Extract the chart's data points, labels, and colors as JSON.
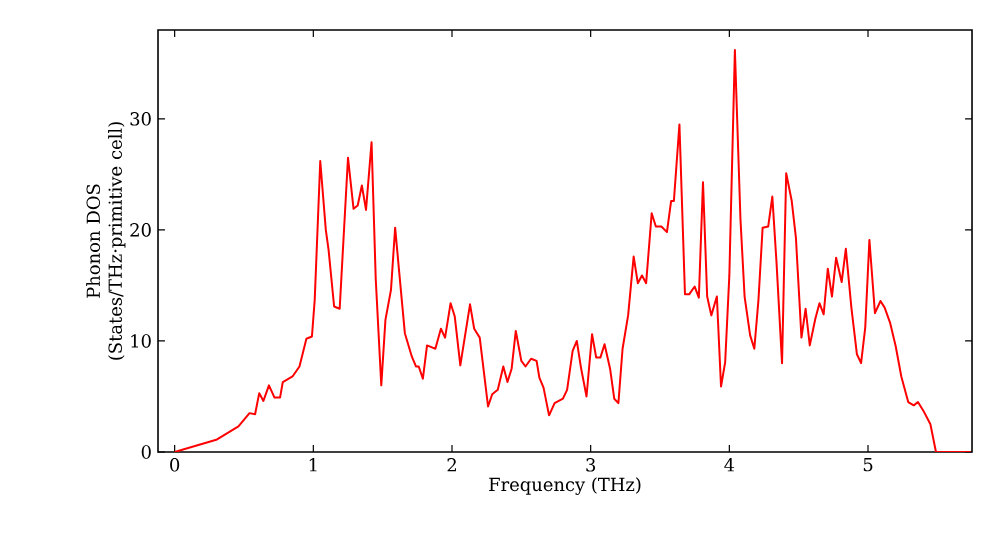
{
  "chart_data": {
    "type": "line",
    "xlabel": "Frequency (THz)",
    "ylabel": "Phonon DOS (States/THz·primitive cell)",
    "xlim": [
      -0.12,
      5.75
    ],
    "ylim": [
      0,
      38
    ],
    "xticks": [
      0,
      1,
      2,
      3,
      4,
      5
    ],
    "yticks": [
      0,
      10,
      20,
      30
    ],
    "marker": "none",
    "line_style": "solid",
    "series": [
      {
        "color": "#ff0000",
        "x": [
          0,
          0.3,
          0.46,
          0.54,
          0.58,
          0.61,
          0.64,
          0.68,
          0.72,
          0.76,
          0.78,
          0.85,
          0.9,
          0.95,
          0.99,
          1.01,
          1.05,
          1.09,
          1.11,
          1.15,
          1.19,
          1.25,
          1.29,
          1.32,
          1.35,
          1.38,
          1.42,
          1.45,
          1.49,
          1.52,
          1.56,
          1.59,
          1.62,
          1.66,
          1.71,
          1.74,
          1.76,
          1.79,
          1.82,
          1.86,
          1.88,
          1.92,
          1.95,
          1.99,
          2.02,
          2.06,
          2.13,
          2.16,
          2.2,
          2.26,
          2.29,
          2.33,
          2.37,
          2.4,
          2.43,
          2.46,
          2.5,
          2.53,
          2.57,
          2.61,
          2.63,
          2.66,
          2.7,
          2.74,
          2.8,
          2.83,
          2.87,
          2.9,
          2.93,
          2.97,
          3.01,
          3.04,
          3.07,
          3.1,
          3.14,
          3.17,
          3.2,
          3.23,
          3.27,
          3.31,
          3.34,
          3.37,
          3.4,
          3.44,
          3.47,
          3.51,
          3.55,
          3.58,
          3.6,
          3.64,
          3.68,
          3.71,
          3.75,
          3.78,
          3.81,
          3.84,
          3.87,
          3.91,
          3.94,
          3.97,
          4.0,
          4.04,
          4.08,
          4.11,
          4.15,
          4.18,
          4.21,
          4.24,
          4.28,
          4.31,
          4.34,
          4.38,
          4.41,
          4.45,
          4.48,
          4.52,
          4.55,
          4.58,
          4.62,
          4.65,
          4.68,
          4.71,
          4.74,
          4.77,
          4.81,
          4.84,
          4.88,
          4.92,
          4.95,
          4.98,
          5.01,
          5.05,
          5.09,
          5.12,
          5.16,
          5.2,
          5.24,
          5.29,
          5.33,
          5.36,
          5.4,
          5.45,
          5.49,
          5.74
        ],
        "values": [
          0,
          1.1,
          2.3,
          3.5,
          3.4,
          5.3,
          4.6,
          6.0,
          4.9,
          4.9,
          6.3,
          6.8,
          7.7,
          10.2,
          10.4,
          13.7,
          26.2,
          20.0,
          18.2,
          13.1,
          12.9,
          26.5,
          21.9,
          22.2,
          24.0,
          21.8,
          27.9,
          15.6,
          6.0,
          11.9,
          14.6,
          20.2,
          16.1,
          10.7,
          8.6,
          7.7,
          7.7,
          6.6,
          9.6,
          9.4,
          9.3,
          11.1,
          10.3,
          13.4,
          12.2,
          7.8,
          13.3,
          11.1,
          10.3,
          4.1,
          5.2,
          5.6,
          7.7,
          6.3,
          7.5,
          10.9,
          8.2,
          7.7,
          8.4,
          8.2,
          6.7,
          5.8,
          3.3,
          4.4,
          4.8,
          5.6,
          9.1,
          10.0,
          7.6,
          5.0,
          10.6,
          8.5,
          8.5,
          9.7,
          7.5,
          4.8,
          4.4,
          9.3,
          12.3,
          17.6,
          15.2,
          15.9,
          15.2,
          21.5,
          20.3,
          20.3,
          19.8,
          22.6,
          22.6,
          29.5,
          14.2,
          14.2,
          14.9,
          13.9,
          24.3,
          14.0,
          12.3,
          14.0,
          5.9,
          8.1,
          15.9,
          36.2,
          21.0,
          14.0,
          10.5,
          9.3,
          13.7,
          20.2,
          20.3,
          23.0,
          17.1,
          8.0,
          25.1,
          22.6,
          19.3,
          10.3,
          12.9,
          9.6,
          12.0,
          13.4,
          12.4,
          16.5,
          14.0,
          17.5,
          15.3,
          18.3,
          13.0,
          8.8,
          8.0,
          11.2,
          19.1,
          12.5,
          13.6,
          13.0,
          11.6,
          9.5,
          6.8,
          4.5,
          4.2,
          4.5,
          3.7,
          2.5,
          0,
          0
        ]
      }
    ]
  }
}
